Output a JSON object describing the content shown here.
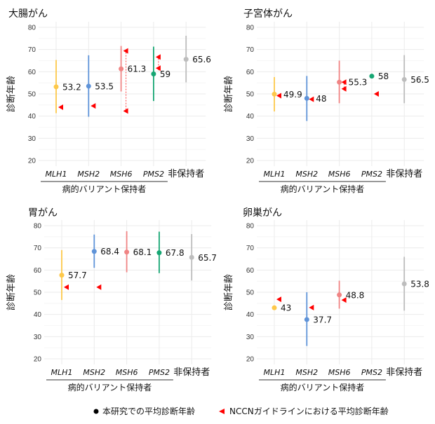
{
  "colors": {
    "MLH1": "#FDC84A",
    "MSH2": "#5F93D8",
    "MSH6": "#F08484",
    "PMS2": "#16A673",
    "非保持者": "#BDBDBD",
    "nccn": "#FF0000",
    "grid": "#EBEBEB"
  },
  "legend": {
    "study_mean": "本研究での平均診断年齢",
    "nccn_mean": "NCCNガイドラインにおける平均診断年齢",
    "study_marker": "circle-black",
    "nccn_marker": "triangle-left-red"
  },
  "chart_data": [
    {
      "type": "scatter",
      "title": "大腸がん",
      "ylabel": "診断年齢",
      "ylim": [
        20,
        80
      ],
      "yticks": [
        20,
        30,
        40,
        50,
        60,
        70,
        80
      ],
      "grid": true,
      "categories": [
        "MLH1",
        "MSH2",
        "MSH6",
        "PMS2",
        "非保持者"
      ],
      "group_label": "病的バリアント保持者",
      "points": [
        {
          "category": "MLH1",
          "mean": 53.2,
          "label": "53.2",
          "range": [
            41.3,
            65.3
          ],
          "nccn": [
            44
          ]
        },
        {
          "category": "MSH2",
          "mean": 53.5,
          "label": "53.5",
          "range": [
            39.7,
            67.4
          ],
          "nccn": [
            44.6
          ]
        },
        {
          "category": "MSH6",
          "mean": 61.3,
          "label": "61.3",
          "range": [
            51.1,
            71.6
          ],
          "nccn": [
            69.4,
            42.3
          ]
        },
        {
          "category": "PMS2",
          "mean": 59,
          "label": "59",
          "range": [
            46.8,
            71.3
          ],
          "nccn": [
            66.6,
            61.6
          ]
        },
        {
          "category": "非保持者",
          "mean": 65.6,
          "label": "65.6",
          "range": [
            55.2,
            76.2
          ],
          "nccn": []
        }
      ]
    },
    {
      "type": "scatter",
      "title": "子宮体がん",
      "ylabel": "診断年齢",
      "ylim": [
        20,
        80
      ],
      "yticks": [
        20,
        30,
        40,
        50,
        60,
        70,
        80
      ],
      "grid": true,
      "categories": [
        "MLH1",
        "MSH2",
        "MSH6",
        "PMS2",
        "非保持者"
      ],
      "group_label": "病的バリアント保持者",
      "points": [
        {
          "category": "MLH1",
          "mean": 49.9,
          "label": "49.9",
          "range": [
            42.1,
            57.6
          ],
          "nccn": [
            49.2
          ]
        },
        {
          "category": "MSH2",
          "mean": 48,
          "label": "48",
          "range": [
            37.8,
            58.1
          ],
          "nccn": [
            47.6
          ]
        },
        {
          "category": "MSH6",
          "mean": 55.3,
          "label": "55.3",
          "range": [
            45.8,
            65
          ],
          "nccn": [
            55.3,
            52.3
          ]
        },
        {
          "category": "PMS2",
          "mean": 58,
          "label": "58",
          "range": null,
          "nccn": [
            50
          ]
        },
        {
          "category": "非保持者",
          "mean": 56.5,
          "label": "56.5",
          "range": [
            45.8,
            67.5
          ],
          "nccn": []
        }
      ]
    },
    {
      "type": "scatter",
      "title": "胃がん",
      "ylabel": "診断年齢",
      "ylim": [
        20,
        80
      ],
      "yticks": [
        20,
        30,
        40,
        50,
        60,
        70,
        80
      ],
      "grid": true,
      "categories": [
        "MLH1",
        "MSH2",
        "MSH6",
        "PMS2",
        "非保持者"
      ],
      "group_label": "病的バリアント保持者",
      "points": [
        {
          "category": "MLH1",
          "mean": 57.7,
          "label": "57.7",
          "range": [
            46.5,
            69
          ],
          "nccn": [
            52.3
          ]
        },
        {
          "category": "MSH2",
          "mean": 68.4,
          "label": "68.4",
          "range": [
            61,
            76
          ],
          "nccn": [
            52.3
          ]
        },
        {
          "category": "MSH6",
          "mean": 68.1,
          "label": "68.1",
          "range": [
            59,
            77.5
          ],
          "nccn": []
        },
        {
          "category": "PMS2",
          "mean": 67.8,
          "label": "67.8",
          "range": [
            58.6,
            77.3
          ],
          "nccn": []
        },
        {
          "category": "非保持者",
          "mean": 65.7,
          "label": "65.7",
          "range": [
            55.3,
            76.2
          ],
          "nccn": []
        }
      ]
    },
    {
      "type": "scatter",
      "title": "卵巣がん",
      "ylabel": "診断年齢",
      "ylim": [
        20,
        80
      ],
      "yticks": [
        20,
        30,
        40,
        50,
        60,
        70,
        80
      ],
      "grid": true,
      "categories": [
        "MLH1",
        "MSH2",
        "MSH6",
        "PMS2",
        "非保持者"
      ],
      "group_label": "病的バリアント保持者",
      "points": [
        {
          "category": "MLH1",
          "mean": 43,
          "label": "43",
          "range": null,
          "nccn": [
            46.8
          ]
        },
        {
          "category": "MSH2",
          "mean": 37.7,
          "label": "37.7",
          "range": [
            25.8,
            50
          ],
          "nccn": [
            43.1
          ]
        },
        {
          "category": "MSH6",
          "mean": 48.8,
          "label": "48.8",
          "range": [
            42.6,
            55.2
          ],
          "nccn": [
            46.5
          ]
        },
        {
          "category": "PMS2",
          "mean": null,
          "label": "",
          "range": null,
          "nccn": []
        },
        {
          "category": "非保持者",
          "mean": 53.8,
          "label": "53.8",
          "range": [
            41.7,
            66
          ],
          "nccn": []
        }
      ]
    }
  ]
}
